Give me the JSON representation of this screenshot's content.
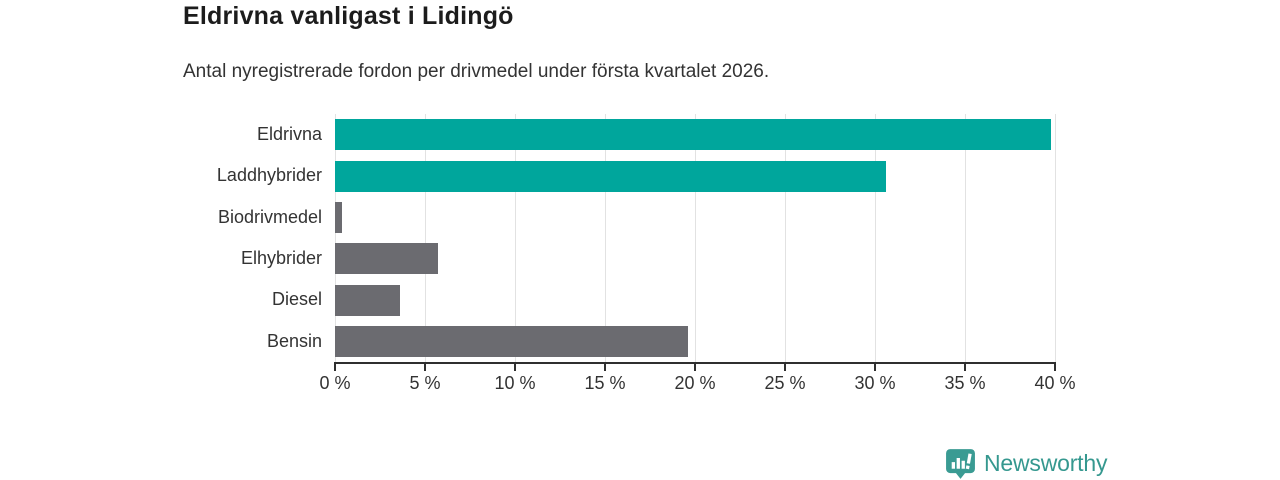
{
  "header": {
    "title": "Eldrivna vanligast i Lidingö",
    "subtitle": "Antal nyregistrerade fordon per drivmedel under första kvartalet 2026."
  },
  "chart_data": {
    "type": "bar",
    "orientation": "horizontal",
    "title": "Eldrivna vanligast i Lidingö",
    "subtitle": "Antal nyregistrerade fordon per drivmedel under första kvartalet 2026.",
    "categories": [
      "Eldrivna",
      "Laddhybrider",
      "Biodrivmedel",
      "Elhybrider",
      "Diesel",
      "Bensin"
    ],
    "values": [
      39.8,
      30.6,
      0.4,
      5.7,
      3.6,
      19.6
    ],
    "unit": "%",
    "bar_colors": [
      "#00a69c",
      "#00a69c",
      "#6b6b70",
      "#6b6b70",
      "#6b6b70",
      "#6b6b70"
    ],
    "xlabel": "",
    "ylabel": "",
    "xlim": [
      0,
      40
    ],
    "xticks": [
      0,
      5,
      10,
      15,
      20,
      25,
      30,
      35,
      40
    ],
    "xtick_labels": [
      "0 %",
      "5 %",
      "10 %",
      "15 %",
      "20 %",
      "25 %",
      "30 %",
      "35 %",
      "40 %"
    ],
    "grid": true,
    "legend": false
  },
  "colors": {
    "accent_teal": "#00a69c",
    "bar_gray": "#6b6b70",
    "gridline": "#e2e2e2",
    "axis_line": "#2f2f2f",
    "title_text": "#1c1c1c",
    "body_text": "#333333",
    "brand_teal": "#35988f",
    "logo_badge": "#3a9b93"
  },
  "footer": {
    "brand": "Newsworthy"
  },
  "icons": {
    "logo": "newsworthy-badge-barchart-icon"
  }
}
